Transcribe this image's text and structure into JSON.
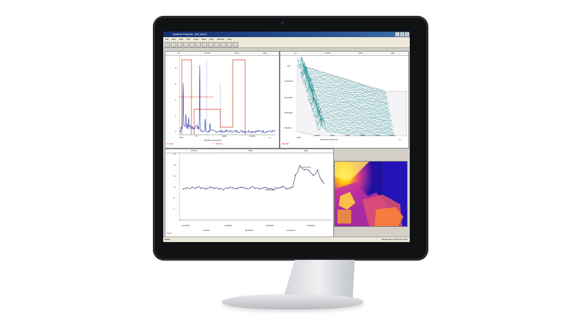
{
  "window": {
    "title": "Dynamics Enterprise - [MK_demo]",
    "controls": [
      "_",
      "□",
      "×"
    ]
  },
  "menu": [
    "File",
    "Edit",
    "View",
    "Plot",
    "Tools",
    "Data",
    "Help",
    "Window",
    "Misc"
  ],
  "toolbar": {
    "button_count": 12
  },
  "spectrum": {
    "header": [
      "Lin",
      "Overall",
      "Peak",
      "Mag"
    ],
    "y_ticks": [
      "10",
      "8",
      "6",
      "4",
      "2"
    ],
    "x_ticks": [
      "2K",
      "60000",
      "120000"
    ],
    "x_left": "CPM",
    "x_right": "Lin",
    "x_caption": "6/23/2014 4:52:20 AM",
    "marker_caption": "1 - 10mm/s",
    "bottom_left": "Lin Spec"
  },
  "waterfall": {
    "header": [
      "Lin",
      "Overall",
      "Peak",
      "Mag"
    ],
    "y_ticks": [
      "200",
      "10/29/2013",
      "8/27/2009",
      "3/26/2008",
      "5/8/2002"
    ],
    "x_ticks": [
      "20000",
      "40000",
      "60000",
      "80000",
      "100000",
      "120000"
    ],
    "x_left": "CPM",
    "x_caption": "6/23/2014 4:52:20 AM",
    "x_right": "Lin",
    "bottom_left": "Waterfall"
  },
  "trend": {
    "header": [
      "Overall",
      "Peak",
      "Mag"
    ],
    "y_ticks": [
      "24",
      "20",
      "16",
      "12",
      "8",
      "4"
    ],
    "x_ticks": [
      "3/27/2003",
      "7/1/2003",
      "2/26/2007",
      "8/27/2008",
      "6/23/2010",
      "11/29/2011",
      "5/18/2013"
    ],
    "annotations": [
      "new routing",
      "New Routing"
    ],
    "bottom_left": "Trend"
  },
  "colors": {
    "spectrum_line": "#1a2a9a",
    "alarm_line": "#d03020",
    "waterfall_line": "#1a8a8a",
    "trend_line": "#3a3a6a"
  },
  "status": {
    "left": "Ready",
    "right": "Target Label: pkrum3T2 admin"
  }
}
